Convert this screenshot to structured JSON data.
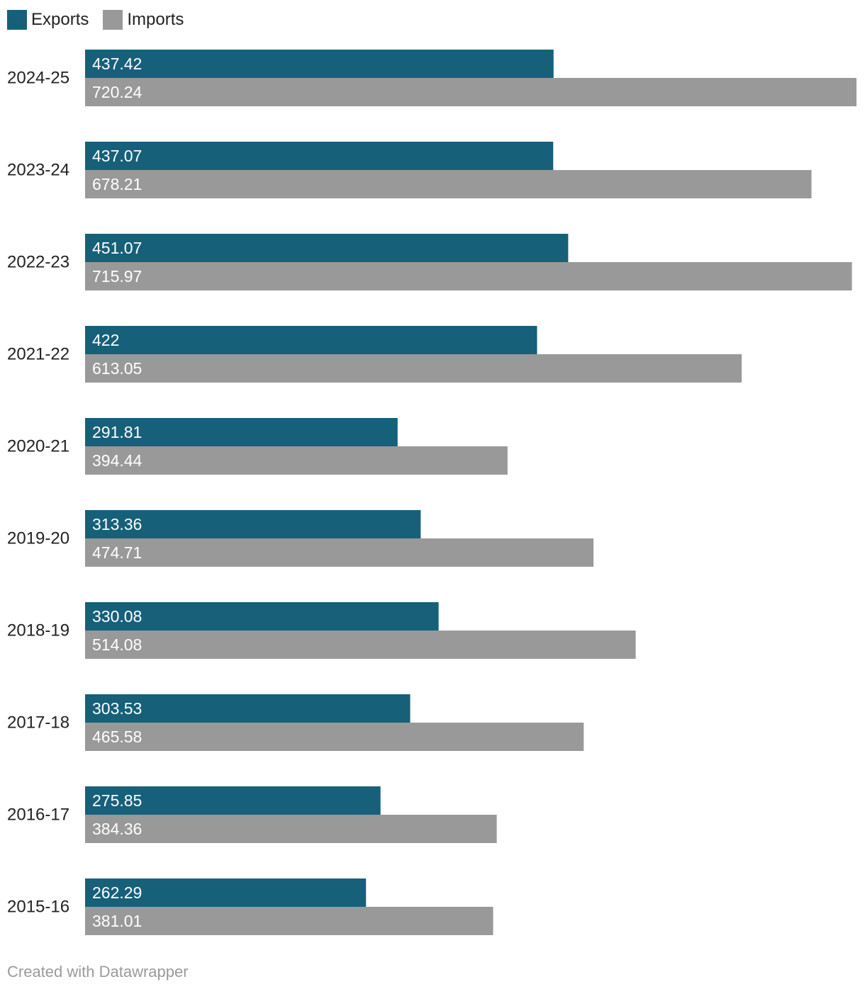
{
  "chart_data": {
    "type": "bar",
    "orientation": "horizontal",
    "title": "",
    "xlabel": "",
    "ylabel": "",
    "grid": false,
    "legend_position": "top-left",
    "xlim": [
      0,
      720.24
    ],
    "categories": [
      "2024-25",
      "2023-24",
      "2022-23",
      "2021-22",
      "2020-21",
      "2019-20",
      "2018-19",
      "2017-18",
      "2016-17",
      "2015-16"
    ],
    "series": [
      {
        "name": "Exports",
        "color": "#17607a",
        "values": [
          437.42,
          437.07,
          451.07,
          422,
          291.81,
          313.36,
          330.08,
          303.53,
          275.85,
          262.29
        ],
        "labels": [
          "437.42",
          "437.07",
          "451.07",
          "422",
          "291.81",
          "313.36",
          "330.08",
          "303.53",
          "275.85",
          "262.29"
        ]
      },
      {
        "name": "Imports",
        "color": "#999999",
        "values": [
          720.24,
          678.21,
          715.97,
          613.05,
          394.44,
          474.71,
          514.08,
          465.58,
          384.36,
          381.01
        ],
        "labels": [
          "720.24",
          "678.21",
          "715.97",
          "613.05",
          "394.44",
          "474.71",
          "514.08",
          "465.58",
          "384.36",
          "381.01"
        ]
      }
    ]
  },
  "footer": {
    "credit": "Created with Datawrapper"
  }
}
